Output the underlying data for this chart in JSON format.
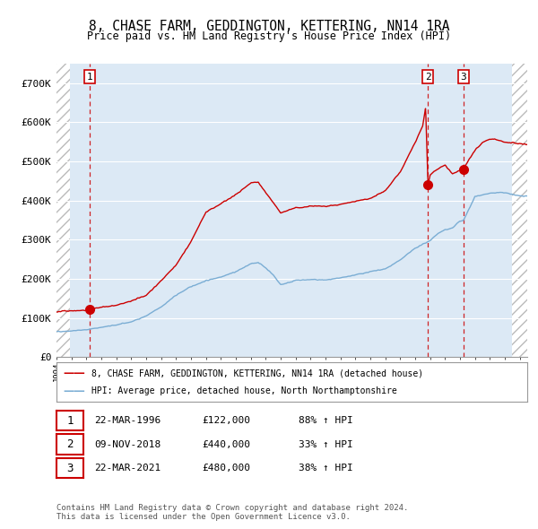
{
  "title1": "8, CHASE FARM, GEDDINGTON, KETTERING, NN14 1RA",
  "title2": "Price paid vs. HM Land Registry's House Price Index (HPI)",
  "xlim_start": 1994.0,
  "xlim_end": 2025.5,
  "ylim_min": 0,
  "ylim_max": 750000,
  "yticks": [
    0,
    100000,
    200000,
    300000,
    400000,
    500000,
    600000,
    700000
  ],
  "ytick_labels": [
    "£0",
    "£100K",
    "£200K",
    "£300K",
    "£400K",
    "£500K",
    "£600K",
    "£700K"
  ],
  "sale_dates": [
    1996.22,
    2018.86,
    2021.22
  ],
  "sale_prices": [
    122000,
    440000,
    480000
  ],
  "sale_labels": [
    "1",
    "2",
    "3"
  ],
  "legend_line1": "8, CHASE FARM, GEDDINGTON, KETTERING, NN14 1RA (detached house)",
  "legend_line2": "HPI: Average price, detached house, North Northamptonshire",
  "table_data": [
    [
      "1",
      "22-MAR-1996",
      "£122,000",
      "88% ↑ HPI"
    ],
    [
      "2",
      "09-NOV-2018",
      "£440,000",
      "33% ↑ HPI"
    ],
    [
      "3",
      "22-MAR-2021",
      "£480,000",
      "38% ↑ HPI"
    ]
  ],
  "footer1": "Contains HM Land Registry data © Crown copyright and database right 2024.",
  "footer2": "This data is licensed under the Open Government Licence v3.0.",
  "price_line_color": "#cc0000",
  "hpi_line_color": "#7aadd4",
  "sale_dot_color": "#cc0000",
  "bg_color": "#dce9f5",
  "grid_color": "#ffffff",
  "vline_color": "#cc0000",
  "hatch_left_end": 1994.9,
  "hatch_right_start": 2024.5
}
